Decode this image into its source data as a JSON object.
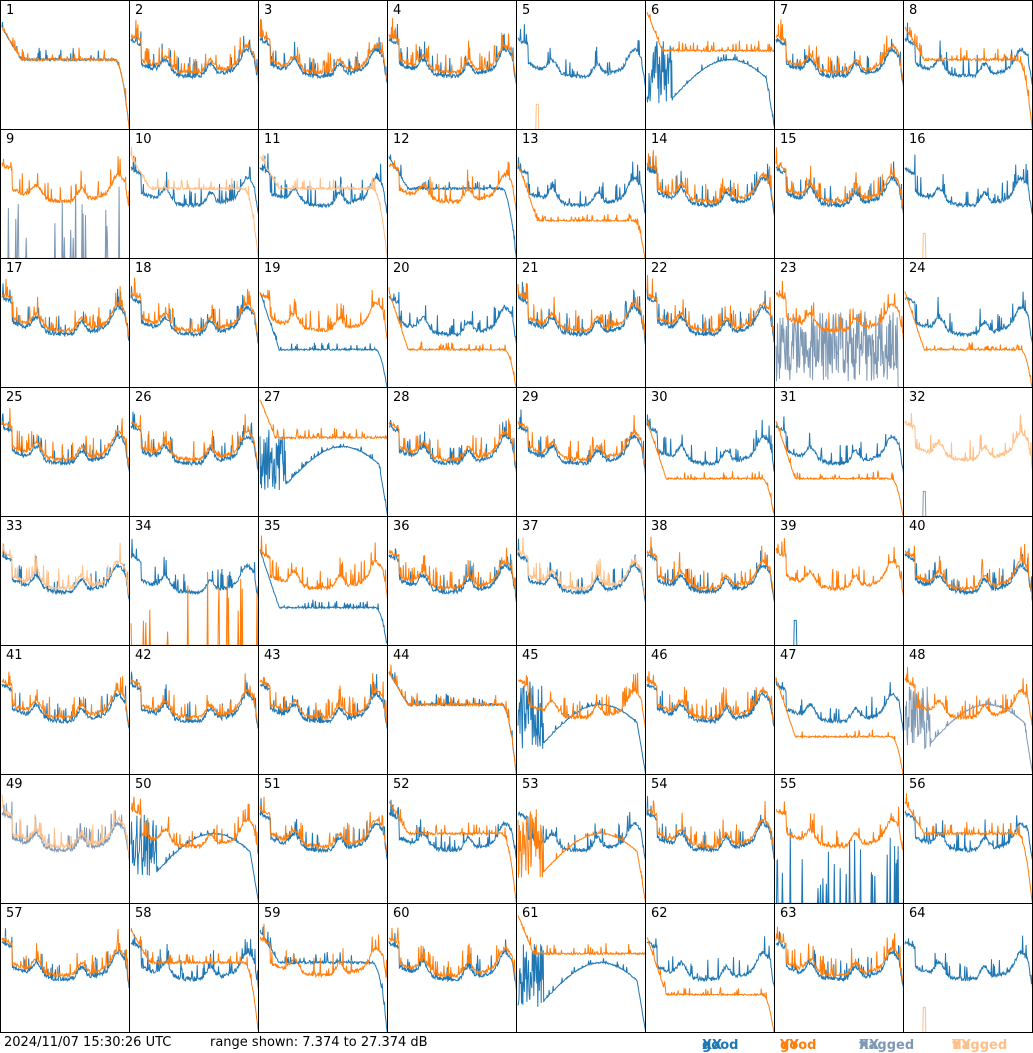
{
  "footer": {
    "timestamp": "2024/11/07 15:30:26 UTC",
    "range_text": "range shown: 7.374 to 27.374 dB",
    "legend": [
      {
        "prefix": "good",
        "pol": "XX",
        "color": "#1f77b4"
      },
      {
        "prefix": "good",
        "pol": "YY",
        "color": "#ff7f0e"
      },
      {
        "prefix": "flagged",
        "pol": "XX",
        "color": "#7f99b5"
      },
      {
        "prefix": "flagged",
        "pol": "YY",
        "color": "#ffbf87"
      }
    ]
  },
  "chart_data": {
    "type": "line",
    "title": "",
    "ylim": [
      7.374,
      27.374
    ],
    "yunit": "dB",
    "panels": [
      {
        "n": 1,
        "xx": "good",
        "yy": "good",
        "xx_shape": "flat_drop",
        "yy_shape": "flat_drop"
      },
      {
        "n": 2,
        "xx": "good",
        "yy": "good",
        "xx_shape": "bandpass",
        "yy_shape": "bandpass"
      },
      {
        "n": 3,
        "xx": "good",
        "yy": "good",
        "xx_shape": "bandpass",
        "yy_shape": "bandpass"
      },
      {
        "n": 4,
        "xx": "good",
        "yy": "good",
        "xx_shape": "bandpass",
        "yy_shape": "bandpass"
      },
      {
        "n": 5,
        "xx": "good",
        "yy": "flagged",
        "xx_shape": "bandpass",
        "yy_shape": "spike_low"
      },
      {
        "n": 6,
        "xx": "good",
        "yy": "good",
        "xx_shape": "dip",
        "yy_shape": "flat_high"
      },
      {
        "n": 7,
        "xx": "good",
        "yy": "good",
        "xx_shape": "bandpass",
        "yy_shape": "bandpass"
      },
      {
        "n": 8,
        "xx": "good",
        "yy": "good",
        "xx_shape": "bandpass",
        "yy_shape": "flat_drop"
      },
      {
        "n": 9,
        "xx": "flagged",
        "yy": "good",
        "xx_shape": "spikes",
        "yy_shape": "bandpass"
      },
      {
        "n": 10,
        "xx": "good",
        "yy": "flagged",
        "xx_shape": "bandpass",
        "yy_shape": "flat_drop"
      },
      {
        "n": 11,
        "xx": "good",
        "yy": "flagged",
        "xx_shape": "bandpass",
        "yy_shape": "flat_drop"
      },
      {
        "n": 12,
        "xx": "good",
        "yy": "good",
        "xx_shape": "flat_drop",
        "yy_shape": "bandpass"
      },
      {
        "n": 13,
        "xx": "good",
        "yy": "good",
        "xx_shape": "bandpass",
        "yy_shape": "low_drop"
      },
      {
        "n": 14,
        "xx": "good",
        "yy": "good",
        "xx_shape": "bandpass",
        "yy_shape": "bandpass"
      },
      {
        "n": 15,
        "xx": "good",
        "yy": "good",
        "xx_shape": "bandpass",
        "yy_shape": "bandpass"
      },
      {
        "n": 16,
        "xx": "good",
        "yy": "flagged",
        "xx_shape": "bandpass",
        "yy_shape": "spike_low"
      },
      {
        "n": 17,
        "xx": "good",
        "yy": "good",
        "xx_shape": "bandpass",
        "yy_shape": "bandpass"
      },
      {
        "n": 18,
        "xx": "good",
        "yy": "good",
        "xx_shape": "bandpass",
        "yy_shape": "bandpass"
      },
      {
        "n": 19,
        "xx": "good",
        "yy": "good",
        "xx_shape": "low_drop",
        "yy_shape": "bandpass"
      },
      {
        "n": 20,
        "xx": "good",
        "yy": "good",
        "xx_shape": "bandpass",
        "yy_shape": "low_drop"
      },
      {
        "n": 21,
        "xx": "good",
        "yy": "good",
        "xx_shape": "bandpass",
        "yy_shape": "bandpass"
      },
      {
        "n": 22,
        "xx": "good",
        "yy": "good",
        "xx_shape": "bandpass",
        "yy_shape": "bandpass"
      },
      {
        "n": 23,
        "xx": "flagged",
        "yy": "good",
        "xx_shape": "noise",
        "yy_shape": "bandpass"
      },
      {
        "n": 24,
        "xx": "good",
        "yy": "good",
        "xx_shape": "bandpass",
        "yy_shape": "low_drop"
      },
      {
        "n": 25,
        "xx": "good",
        "yy": "good",
        "xx_shape": "bandpass",
        "yy_shape": "bandpass"
      },
      {
        "n": 26,
        "xx": "good",
        "yy": "good",
        "xx_shape": "bandpass",
        "yy_shape": "bandpass"
      },
      {
        "n": 27,
        "xx": "good",
        "yy": "good",
        "xx_shape": "dip",
        "yy_shape": "flat_high"
      },
      {
        "n": 28,
        "xx": "good",
        "yy": "good",
        "xx_shape": "bandpass",
        "yy_shape": "bandpass"
      },
      {
        "n": 29,
        "xx": "good",
        "yy": "good",
        "xx_shape": "bandpass",
        "yy_shape": "bandpass"
      },
      {
        "n": 30,
        "xx": "good",
        "yy": "good",
        "xx_shape": "bandpass",
        "yy_shape": "low_drop"
      },
      {
        "n": 31,
        "xx": "good",
        "yy": "good",
        "xx_shape": "bandpass",
        "yy_shape": "low_drop"
      },
      {
        "n": 32,
        "xx": "flagged",
        "yy": "flagged",
        "xx_shape": "spike_low",
        "yy_shape": "bandpass"
      },
      {
        "n": 33,
        "xx": "good",
        "yy": "flagged",
        "xx_shape": "bandpass",
        "yy_shape": "bandpass"
      },
      {
        "n": 34,
        "xx": "good",
        "yy": "good",
        "xx_shape": "bandpass",
        "yy_shape": "spikes"
      },
      {
        "n": 35,
        "xx": "good",
        "yy": "good",
        "xx_shape": "low_drop",
        "yy_shape": "bandpass"
      },
      {
        "n": 36,
        "xx": "good",
        "yy": "good",
        "xx_shape": "bandpass",
        "yy_shape": "bandpass"
      },
      {
        "n": 37,
        "xx": "good",
        "yy": "flagged",
        "xx_shape": "bandpass",
        "yy_shape": "bandpass"
      },
      {
        "n": 38,
        "xx": "good",
        "yy": "good",
        "xx_shape": "bandpass",
        "yy_shape": "bandpass"
      },
      {
        "n": 39,
        "xx": "good",
        "yy": "good",
        "xx_shape": "spike_low",
        "yy_shape": "bandpass"
      },
      {
        "n": 40,
        "xx": "good",
        "yy": "good",
        "xx_shape": "bandpass",
        "yy_shape": "bandpass"
      },
      {
        "n": 41,
        "xx": "good",
        "yy": "good",
        "xx_shape": "bandpass",
        "yy_shape": "bandpass"
      },
      {
        "n": 42,
        "xx": "good",
        "yy": "good",
        "xx_shape": "bandpass",
        "yy_shape": "bandpass"
      },
      {
        "n": 43,
        "xx": "good",
        "yy": "good",
        "xx_shape": "bandpass",
        "yy_shape": "bandpass"
      },
      {
        "n": 44,
        "xx": "good",
        "yy": "good",
        "xx_shape": "flat_drop",
        "yy_shape": "flat_drop"
      },
      {
        "n": 45,
        "xx": "good",
        "yy": "good",
        "xx_shape": "dip",
        "yy_shape": "bandpass"
      },
      {
        "n": 46,
        "xx": "good",
        "yy": "good",
        "xx_shape": "bandpass",
        "yy_shape": "bandpass"
      },
      {
        "n": 47,
        "xx": "good",
        "yy": "good",
        "xx_shape": "bandpass",
        "yy_shape": "low_drop"
      },
      {
        "n": 48,
        "xx": "flagged",
        "yy": "good",
        "xx_shape": "dip",
        "yy_shape": "bandpass"
      },
      {
        "n": 49,
        "xx": "flagged",
        "yy": "flagged",
        "xx_shape": "bandpass",
        "yy_shape": "bandpass"
      },
      {
        "n": 50,
        "xx": "good",
        "yy": "good",
        "xx_shape": "dip",
        "yy_shape": "bandpass"
      },
      {
        "n": 51,
        "xx": "good",
        "yy": "good",
        "xx_shape": "bandpass",
        "yy_shape": "bandpass"
      },
      {
        "n": 52,
        "xx": "good",
        "yy": "good",
        "xx_shape": "bandpass",
        "yy_shape": "flat_drop"
      },
      {
        "n": 53,
        "xx": "good",
        "yy": "good",
        "xx_shape": "bandpass",
        "yy_shape": "dip"
      },
      {
        "n": 54,
        "xx": "good",
        "yy": "good",
        "xx_shape": "bandpass",
        "yy_shape": "bandpass"
      },
      {
        "n": 55,
        "xx": "good",
        "yy": "good",
        "xx_shape": "spikes",
        "yy_shape": "bandpass"
      },
      {
        "n": 56,
        "xx": "good",
        "yy": "good",
        "xx_shape": "bandpass",
        "yy_shape": "flat_drop"
      },
      {
        "n": 57,
        "xx": "good",
        "yy": "good",
        "xx_shape": "bandpass",
        "yy_shape": "bandpass"
      },
      {
        "n": 58,
        "xx": "good",
        "yy": "good",
        "xx_shape": "bandpass",
        "yy_shape": "flat_drop"
      },
      {
        "n": 59,
        "xx": "good",
        "yy": "good",
        "xx_shape": "flat_drop",
        "yy_shape": "bandpass"
      },
      {
        "n": 60,
        "xx": "good",
        "yy": "good",
        "xx_shape": "bandpass",
        "yy_shape": "bandpass"
      },
      {
        "n": 61,
        "xx": "good",
        "yy": "good",
        "xx_shape": "dip",
        "yy_shape": "flat_high"
      },
      {
        "n": 62,
        "xx": "good",
        "yy": "good",
        "xx_shape": "bandpass",
        "yy_shape": "low_drop"
      },
      {
        "n": 63,
        "xx": "good",
        "yy": "good",
        "xx_shape": "bandpass",
        "yy_shape": "bandpass"
      },
      {
        "n": 64,
        "xx": "good",
        "yy": "flagged",
        "xx_shape": "bandpass",
        "yy_shape": "spike_low"
      }
    ]
  }
}
